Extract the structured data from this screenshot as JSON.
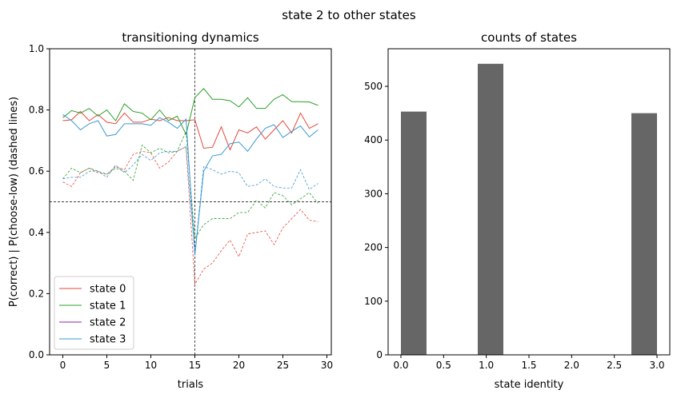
{
  "suptitle": "state 2 to other states",
  "chart_data": [
    {
      "type": "line",
      "title": "transitioning dynamics",
      "xlabel": "trials",
      "ylabel": "P(correct) | P(choose-low) (dashed lines)",
      "xlim": [
        -1.5,
        30.5
      ],
      "ylim": [
        0.0,
        1.0
      ],
      "xticks": [
        0,
        5,
        10,
        15,
        20,
        25,
        30
      ],
      "yticks": [
        0.0,
        0.2,
        0.4,
        0.6,
        0.8,
        1.0
      ],
      "xtick_labels": [
        "0",
        "5",
        "10",
        "15",
        "20",
        "25",
        "30"
      ],
      "ytick_labels": [
        "0.0",
        "0.2",
        "0.4",
        "0.6",
        "0.8",
        "1.0"
      ],
      "vline": 15,
      "hline": 0.5,
      "legend_position": "lower-left",
      "x": [
        0,
        1,
        2,
        3,
        4,
        5,
        6,
        7,
        8,
        9,
        10,
        11,
        12,
        13,
        14,
        15,
        16,
        17,
        18,
        19,
        20,
        21,
        22,
        23,
        24,
        25,
        26,
        27,
        28,
        29
      ],
      "series": [
        {
          "name": "state 0",
          "color": "#e8473a",
          "solid": [
            0.765,
            0.768,
            0.795,
            0.765,
            0.785,
            0.76,
            0.755,
            0.79,
            0.76,
            0.76,
            0.77,
            0.765,
            0.775,
            0.765,
            0.765,
            0.768,
            0.675,
            0.678,
            0.745,
            0.67,
            0.735,
            0.725,
            0.745,
            0.705,
            0.735,
            0.765,
            0.725,
            0.79,
            0.74,
            0.755
          ],
          "dashed": [
            0.565,
            0.55,
            0.595,
            0.61,
            0.595,
            0.59,
            0.615,
            0.605,
            0.655,
            0.665,
            0.66,
            0.61,
            0.63,
            0.665,
            0.68,
            0.23,
            0.28,
            0.3,
            0.34,
            0.375,
            0.32,
            0.395,
            0.4,
            0.405,
            0.36,
            0.415,
            0.445,
            0.475,
            0.44,
            0.435
          ]
        },
        {
          "name": "state 1",
          "color": "#2ca02c",
          "solid": [
            0.775,
            0.798,
            0.79,
            0.805,
            0.78,
            0.8,
            0.765,
            0.82,
            0.795,
            0.79,
            0.768,
            0.8,
            0.765,
            0.78,
            0.72,
            0.84,
            0.87,
            0.835,
            0.835,
            0.83,
            0.81,
            0.84,
            0.805,
            0.805,
            0.835,
            0.85,
            0.827,
            0.827,
            0.826,
            0.815
          ],
          "dashed": [
            0.575,
            0.61,
            0.595,
            0.61,
            0.6,
            0.59,
            0.61,
            0.6,
            0.57,
            0.685,
            0.66,
            0.675,
            0.66,
            0.665,
            0.73,
            0.38,
            0.425,
            0.445,
            0.445,
            0.445,
            0.465,
            0.465,
            0.505,
            0.48,
            0.53,
            0.52,
            0.49,
            0.51,
            0.53,
            0.495
          ]
        },
        {
          "name": "state 2",
          "color": "#8e24aa",
          "solid": [],
          "dashed": []
        },
        {
          "name": "state 3",
          "color": "#3d98d3",
          "solid": [
            0.785,
            0.765,
            0.735,
            0.755,
            0.765,
            0.715,
            0.72,
            0.755,
            0.755,
            0.755,
            0.75,
            0.775,
            0.76,
            0.74,
            0.77,
            0.325,
            0.6,
            0.65,
            0.655,
            0.69,
            0.695,
            0.665,
            0.705,
            0.74,
            0.752,
            0.71,
            0.73,
            0.748,
            0.712,
            0.735
          ],
          "dashed": [
            0.575,
            0.58,
            0.58,
            0.6,
            0.6,
            0.58,
            0.62,
            0.595,
            0.62,
            0.655,
            0.635,
            0.66,
            0.665,
            0.665,
            0.68,
            0.33,
            0.615,
            0.605,
            0.59,
            0.6,
            0.595,
            0.55,
            0.555,
            0.575,
            0.55,
            0.545,
            0.545,
            0.605,
            0.54,
            0.56
          ]
        }
      ]
    },
    {
      "type": "bar",
      "title": "counts of states",
      "xlabel": "state identity",
      "ylabel": "",
      "xlim": [
        -0.15,
        3.15
      ],
      "ylim": [
        0,
        570
      ],
      "xticks": [
        0.0,
        0.5,
        1.0,
        1.5,
        2.0,
        2.5,
        3.0
      ],
      "xtick_labels": [
        "0.0",
        "0.5",
        "1.0",
        "1.5",
        "2.0",
        "2.5",
        "3.0"
      ],
      "yticks": [
        0,
        100,
        200,
        300,
        400,
        500
      ],
      "ytick_labels": [
        "0",
        "100",
        "200",
        "300",
        "400",
        "500"
      ],
      "bar_color": "#666666",
      "bars": [
        {
          "x0": 0.0,
          "x1": 0.3,
          "value": 453
        },
        {
          "x0": 0.9,
          "x1": 1.2,
          "value": 542
        },
        {
          "x0": 2.7,
          "x1": 3.0,
          "value": 450
        }
      ]
    }
  ]
}
